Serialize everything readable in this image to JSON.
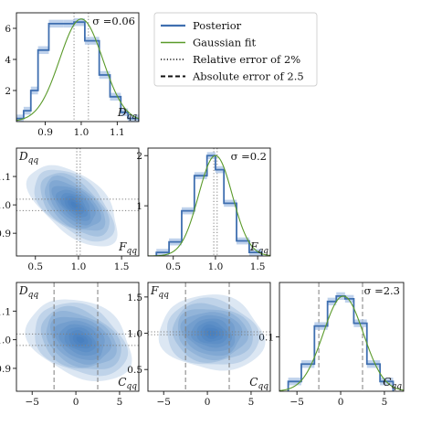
{
  "legend": {
    "items": [
      {
        "label": "Posterior",
        "style": "solid",
        "color": "#3f6fb0",
        "width": 2.2
      },
      {
        "label": "Gaussian fit",
        "style": "solid",
        "color": "#5a9a2a",
        "width": 1.4
      },
      {
        "label": "Relative error of 2%",
        "style": "dotted",
        "color": "#111111",
        "width": 1.6
      },
      {
        "label": "Absolute error of 2.5",
        "style": "dashed",
        "color": "#111111",
        "width": 2
      }
    ]
  },
  "colors": {
    "posterior": "#3f6fb0",
    "band": "#a9c3e6",
    "fit": "#5a9a2a",
    "kde": "#2f6fb6",
    "ref": "#7f7f7f"
  },
  "chart_data": [
    {
      "id": "hist_D",
      "type": "bar",
      "param": "D_qq",
      "label": "D",
      "label_sub": "qq",
      "sigma_text": "σ =0.06",
      "xlim": [
        0.82,
        1.16
      ],
      "ylim": [
        0,
        7
      ],
      "xticks": [
        {
          "v": 0.9,
          "t": "0.9"
        },
        {
          "v": 1.0,
          "t": "1.0"
        },
        {
          "v": 1.1,
          "t": "1.1"
        }
      ],
      "yticks": [
        {
          "v": 2,
          "t": "2"
        },
        {
          "v": 4,
          "t": "4"
        },
        {
          "v": 6,
          "t": "6"
        }
      ],
      "bin_edges": [
        0.82,
        0.84,
        0.86,
        0.88,
        0.91,
        0.95,
        0.98,
        1.01,
        1.05,
        1.08,
        1.11,
        1.13,
        1.16
      ],
      "values": [
        0.2,
        0.7,
        2.0,
        4.6,
        6.3,
        6.3,
        6.4,
        5.2,
        3.0,
        1.6,
        0.6,
        0.2
      ],
      "band": 0.25,
      "fit": {
        "mu": 1.0,
        "sigma": 0.06,
        "amp": 6.6
      },
      "ref_lines": {
        "type": "dotted",
        "values": [
          0.98,
          1.02
        ]
      }
    },
    {
      "id": "hist_F",
      "type": "bar",
      "param": "F_qq",
      "label": "F",
      "label_sub": "qq",
      "sigma_text": "σ =0.2",
      "xlim": [
        0.2,
        1.65
      ],
      "ylim": [
        0,
        2.15
      ],
      "xticks": [
        {
          "v": 0.5,
          "t": "0.5"
        },
        {
          "v": 1.0,
          "t": "1.0"
        },
        {
          "v": 1.5,
          "t": "1.5"
        }
      ],
      "yticks": [
        {
          "v": 1,
          "t": "1"
        },
        {
          "v": 2,
          "t": "2"
        }
      ],
      "bin_edges": [
        0.3,
        0.45,
        0.6,
        0.75,
        0.9,
        1.0,
        1.1,
        1.25,
        1.4,
        1.55
      ],
      "values": [
        0.07,
        0.28,
        0.9,
        1.6,
        2.0,
        1.72,
        1.05,
        0.3,
        0.07
      ],
      "band": 0.07,
      "fit": {
        "mu": 1.0,
        "sigma": 0.2,
        "amp": 2.0
      },
      "ref_lines": {
        "type": "dotted",
        "values": [
          0.98,
          1.02
        ]
      }
    },
    {
      "id": "hist_C",
      "type": "bar",
      "param": "C_qq",
      "label": "C",
      "label_sub": "qq",
      "sigma_text": "σ =2.3",
      "xlim": [
        -7,
        7.2
      ],
      "ylim": [
        0,
        0.2
      ],
      "xticks": [
        {
          "v": -5,
          "t": "−5"
        },
        {
          "v": 0,
          "t": "0"
        },
        {
          "v": 5,
          "t": "5"
        }
      ],
      "yticks": [
        {
          "v": 0.1,
          "t": "0.1"
        }
      ],
      "bin_edges": [
        -6.0,
        -4.5,
        -3.0,
        -1.5,
        -0.5,
        0.5,
        1.5,
        3.0,
        4.5,
        6.0
      ],
      "values": [
        0.018,
        0.05,
        0.12,
        0.165,
        0.175,
        0.17,
        0.125,
        0.05,
        0.018
      ],
      "band": 0.007,
      "fit": {
        "mu": 0.3,
        "sigma": 2.3,
        "amp": 0.175
      },
      "ref_lines": {
        "type": "dashed",
        "values": [
          -2.5,
          2.5
        ]
      }
    },
    {
      "id": "kde_F_D",
      "type": "heatmap",
      "x_param": "F_qq",
      "y_param": "D_qq",
      "xlabel": "F",
      "xlabel_sub": "qq",
      "ylabel": "D",
      "ylabel_sub": "qq",
      "xlim": [
        0.28,
        1.7
      ],
      "ylim": [
        0.82,
        1.2
      ],
      "xticks": [
        {
          "v": 0.5,
          "t": "0.5"
        },
        {
          "v": 1.0,
          "t": "1.0"
        },
        {
          "v": 1.5,
          "t": "1.5"
        }
      ],
      "yticks": [
        {
          "v": 0.9,
          "t": "0.9"
        },
        {
          "v": 1.0,
          "t": "1.0"
        },
        {
          "v": 1.1,
          "t": "1.1"
        }
      ],
      "center": [
        0.95,
        1.0
      ],
      "sx": 0.2,
      "sy": 0.055,
      "rho": -0.55,
      "vref": {
        "type": "dotted",
        "values": [
          0.98,
          1.02
        ]
      },
      "href": {
        "type": "dotted",
        "values": [
          0.98,
          1.02
        ]
      }
    },
    {
      "id": "kde_C_D",
      "type": "heatmap",
      "x_param": "C_qq",
      "y_param": "D_qq",
      "xlabel": "C",
      "xlabel_sub": "qq",
      "ylabel": "D",
      "ylabel_sub": "qq",
      "xlim": [
        -6.8,
        7.2
      ],
      "ylim": [
        0.82,
        1.2
      ],
      "xticks": [
        {
          "v": -5,
          "t": "−5"
        },
        {
          "v": 0,
          "t": "0"
        },
        {
          "v": 5,
          "t": "5"
        }
      ],
      "yticks": [
        {
          "v": 0.9,
          "t": "0.9"
        },
        {
          "v": 1.0,
          "t": "1.0"
        },
        {
          "v": 1.1,
          "t": "1.1"
        }
      ],
      "center": [
        0.5,
        1.0
      ],
      "sx": 2.3,
      "sy": 0.055,
      "rho": -0.3,
      "vref": {
        "type": "dashed",
        "values": [
          -2.5,
          2.5
        ]
      },
      "href": {
        "type": "dotted",
        "values": [
          0.98,
          1.02
        ]
      }
    },
    {
      "id": "kde_C_F",
      "type": "heatmap",
      "x_param": "C_qq",
      "y_param": "F_qq",
      "xlabel": "C",
      "xlabel_sub": "qq",
      "ylabel": "F",
      "ylabel_sub": "qq",
      "xlim": [
        -6.8,
        7.2
      ],
      "ylim": [
        0.2,
        1.7
      ],
      "xticks": [
        {
          "v": -5,
          "t": "−5"
        },
        {
          "v": 0,
          "t": "0"
        },
        {
          "v": 5,
          "t": "5"
        }
      ],
      "yticks": [
        {
          "v": 0.5,
          "t": "0.5"
        },
        {
          "v": 1.0,
          "t": "1.0"
        },
        {
          "v": 1.5,
          "t": "1.5"
        }
      ],
      "center": [
        0.5,
        1.0
      ],
      "sx": 2.3,
      "sy": 0.2,
      "rho": -0.1,
      "vref": {
        "type": "dashed",
        "values": [
          -2.5,
          2.5
        ]
      },
      "href": {
        "type": "dotted",
        "values": [
          0.98,
          1.02
        ]
      }
    }
  ]
}
